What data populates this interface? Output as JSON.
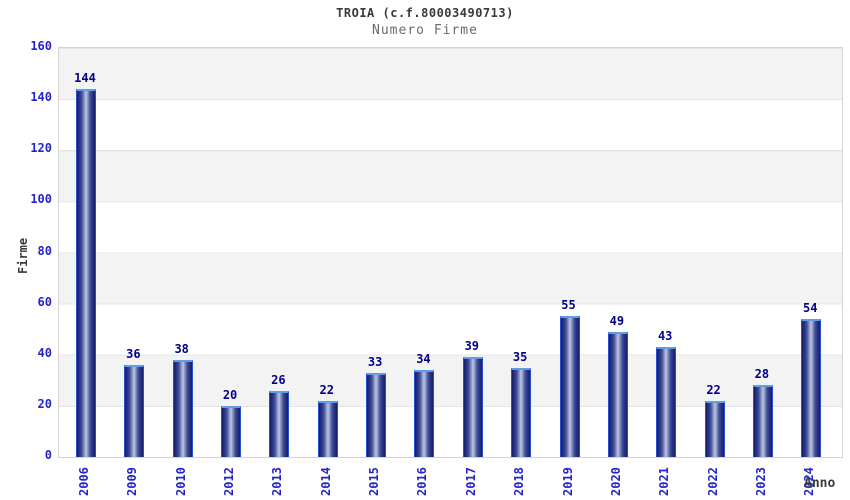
{
  "header": {
    "title": "TROIA (c.f.80003490713)",
    "subtitle": "Numero Firme"
  },
  "chart_data": {
    "type": "bar",
    "title": "TROIA (c.f.80003490713)",
    "subtitle": "Numero Firme",
    "xlabel": "Anno",
    "ylabel": "Firme",
    "categories": [
      "2006",
      "2009",
      "2010",
      "2012",
      "2013",
      "2014",
      "2015",
      "2016",
      "2017",
      "2018",
      "2019",
      "2020",
      "2021",
      "2022",
      "2023",
      "2024"
    ],
    "values": [
      144,
      36,
      38,
      20,
      26,
      22,
      33,
      34,
      39,
      35,
      55,
      49,
      43,
      22,
      28,
      54
    ],
    "ylim": [
      0,
      160
    ],
    "ytick_step": 20,
    "grid": "horizontal-bands",
    "legend": "none"
  },
  "colors": {
    "tick": "#2424cc",
    "value": "#00008b",
    "title": "#3a3a3a",
    "subtitle": "#6b6b6b",
    "axis_title": "#3a3a3a",
    "band": "#f3f3f3",
    "grid": "#e4e4e4",
    "plot_border": "#d4d4d4",
    "bar_dark": "#151d6b",
    "bar_mid": "#3d4b9c",
    "bar_light": "#c0c6de",
    "bar_border": "#2b4fd1",
    "bar_top": "#5f9de6",
    "bg": "#ffffff"
  }
}
